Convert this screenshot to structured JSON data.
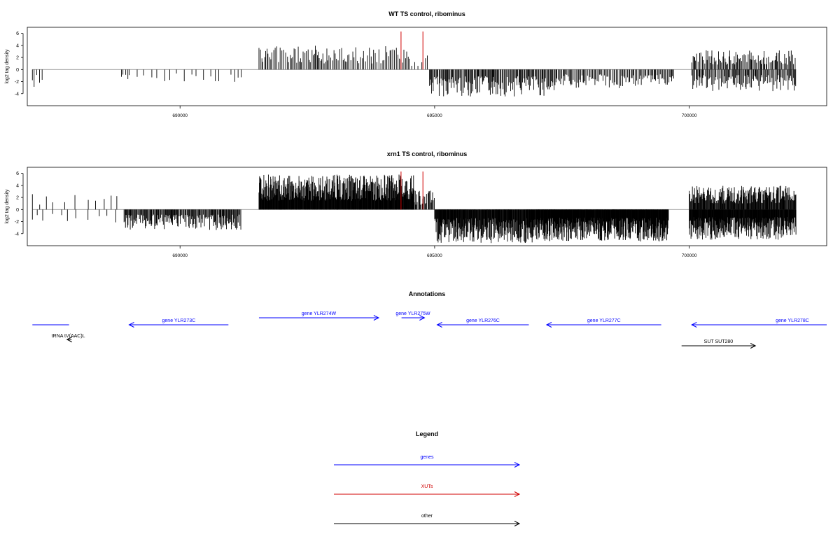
{
  "chart_data": [
    {
      "type": "bar",
      "title": "WT TS control, ribominus",
      "ylabel": "log2 tag density",
      "xlabel": "",
      "xlim": [
        687000,
        702700
      ],
      "ylim": [
        -6,
        7
      ],
      "yticks": [
        -4,
        -2,
        0,
        2,
        4,
        6
      ],
      "xticks": [
        690000,
        695000,
        700000
      ],
      "xtick_labels": [
        "690000",
        "695000",
        "700000"
      ],
      "bar_color": "#000000",
      "highlight_color": "#d00000",
      "highlight_bars": [
        {
          "x": 694340,
          "y": 6.3
        },
        {
          "x": 694770,
          "y": 6.3
        }
      ],
      "segments": [
        {
          "start": 687100,
          "end": 687300,
          "sign": -1,
          "amp": 3.0,
          "step": 40,
          "seed": 1
        },
        {
          "start": 688850,
          "end": 689000,
          "sign": -1,
          "amp": 2.6,
          "step": 45,
          "seed": 2
        },
        {
          "start": 689000,
          "end": 690800,
          "sign": -1,
          "amp": 2.6,
          "step": 110,
          "seed": 3
        },
        {
          "start": 691000,
          "end": 691200,
          "sign": -1,
          "amp": 3.2,
          "step": 60,
          "seed": 4
        },
        {
          "start": 691550,
          "end": 694500,
          "sign": 1,
          "amp": 4.0,
          "step": 28,
          "seed": 5
        },
        {
          "start": 694500,
          "end": 694900,
          "sign": 1,
          "amp": 2.4,
          "step": 60,
          "seed": 6
        },
        {
          "start": 694900,
          "end": 697400,
          "sign": -1,
          "amp": 4.5,
          "step": 18,
          "seed": 7
        },
        {
          "start": 697400,
          "end": 699700,
          "sign": -1,
          "amp": 3.2,
          "step": 22,
          "seed": 8
        },
        {
          "start": 700050,
          "end": 702100,
          "sign": 1,
          "amp": 3.2,
          "step": 22,
          "seed": 9
        },
        {
          "start": 700050,
          "end": 702100,
          "sign": -1,
          "amp": 3.6,
          "step": 20,
          "seed": 10
        }
      ]
    },
    {
      "type": "bar",
      "title": "xrn1 TS control, ribominus",
      "ylabel": "log2 tag density",
      "xlabel": "",
      "xlim": [
        687000,
        702700
      ],
      "ylim": [
        -6,
        7
      ],
      "yticks": [
        -4,
        -2,
        0,
        2,
        4,
        6
      ],
      "xticks": [
        690000,
        695000,
        700000
      ],
      "xtick_labels": [
        "690000",
        "695000",
        "700000"
      ],
      "bar_color": "#000000",
      "highlight_color": "#d00000",
      "highlight_bars": [
        {
          "x": 694340,
          "y": 6.3
        },
        {
          "x": 694770,
          "y": 6.3
        }
      ],
      "segments": [
        {
          "start": 687100,
          "end": 688800,
          "sign": 1,
          "amp": 2.8,
          "step": 180,
          "seed": 11
        },
        {
          "start": 687100,
          "end": 688800,
          "sign": -1,
          "amp": 2.2,
          "step": 160,
          "seed": 12
        },
        {
          "start": 688900,
          "end": 691200,
          "sign": -1,
          "amp": 3.4,
          "step": 14,
          "seed": 13
        },
        {
          "start": 691550,
          "end": 694600,
          "sign": 1,
          "amp": 5.8,
          "step": 7,
          "seed": 14
        },
        {
          "start": 694600,
          "end": 695000,
          "sign": 1,
          "amp": 3.2,
          "step": 20,
          "seed": 15
        },
        {
          "start": 695000,
          "end": 697000,
          "sign": -1,
          "amp": 5.6,
          "step": 8,
          "seed": 16
        },
        {
          "start": 697000,
          "end": 699600,
          "sign": -1,
          "amp": 5.3,
          "step": 6,
          "seed": 17
        },
        {
          "start": 700000,
          "end": 702100,
          "sign": 1,
          "amp": 4.0,
          "step": 10,
          "seed": 18
        },
        {
          "start": 700000,
          "end": 702100,
          "sign": -1,
          "amp": 5.0,
          "step": 7,
          "seed": 19
        }
      ]
    }
  ],
  "annotations": {
    "title": "Annotations",
    "features": [
      {
        "label": "",
        "start": 687100,
        "end": 687820,
        "strand": "",
        "color": "#0000ff",
        "row": 1
      },
      {
        "label": "tRNA tV(AAC)L",
        "start": 687780,
        "end": 687870,
        "strand": "-",
        "color": "#000000",
        "row": 2
      },
      {
        "label": "gene YLR273C",
        "start": 689000,
        "end": 690950,
        "strand": "-",
        "color": "#0000ff",
        "row": 1
      },
      {
        "label": "gene YLR274W",
        "start": 691550,
        "end": 693900,
        "strand": "+",
        "color": "#0000ff",
        "row": 0
      },
      {
        "label": "gene YLR275W",
        "start": 694350,
        "end": 694800,
        "strand": "+",
        "color": "#0000ff",
        "row": 0
      },
      {
        "label": "gene YLR276C",
        "start": 695050,
        "end": 696850,
        "strand": "-",
        "color": "#0000ff",
        "row": 1
      },
      {
        "label": "gene YLR277C",
        "start": 697200,
        "end": 699450,
        "strand": "-",
        "color": "#0000ff",
        "row": 1
      },
      {
        "label": "gene YLR278C",
        "start": 700050,
        "end": 702700,
        "strand": "-",
        "color": "#0000ff",
        "row": 1
      },
      {
        "label": "SUT SUT280",
        "start": 699850,
        "end": 701300,
        "strand": "+",
        "color": "#000000",
        "row": 3
      }
    ]
  },
  "legend": {
    "title": "Legend",
    "entries": [
      {
        "label": "genes",
        "color": "#0000ff"
      },
      {
        "label": "XUTs",
        "color": "#d00000"
      },
      {
        "label": "other",
        "color": "#000000"
      }
    ]
  }
}
